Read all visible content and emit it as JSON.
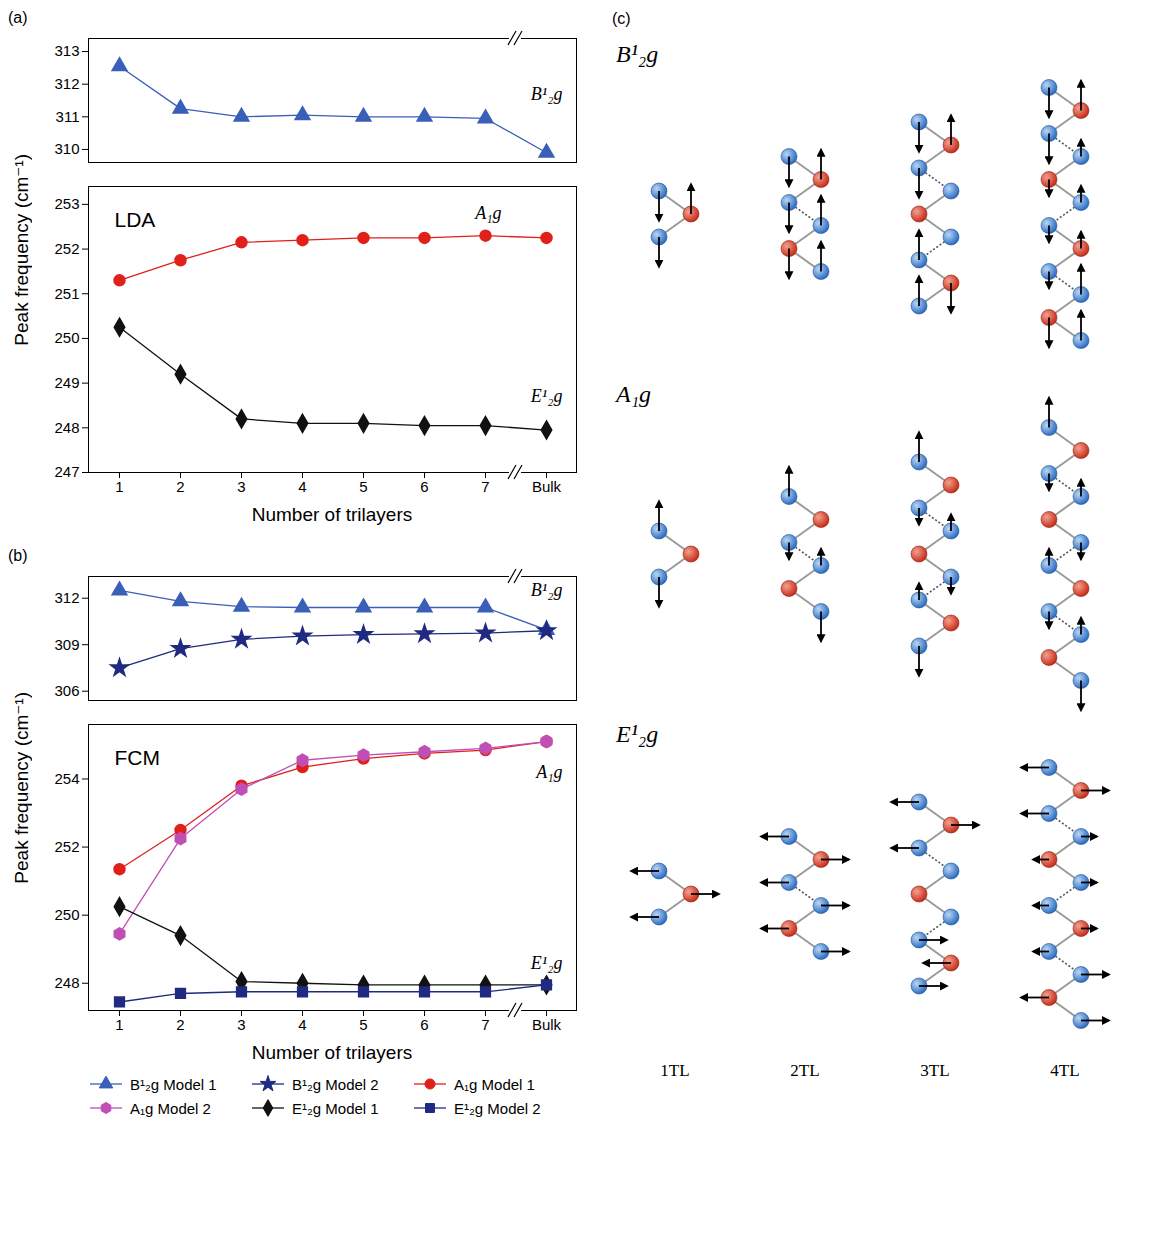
{
  "chart_data": [
    {
      "type": "line",
      "panel": "(a)",
      "title": "LDA",
      "xlabel": "Number of trilayers",
      "ylabel": "Peak frequency (cm⁻¹)",
      "categories": [
        "1",
        "2",
        "3",
        "4",
        "5",
        "6",
        "7",
        "Bulk"
      ],
      "ylim": [
        247,
        253.4
      ],
      "yticks": [
        247,
        248,
        249,
        250,
        251,
        252,
        253
      ],
      "y2lim": [
        309.6,
        313.4
      ],
      "y2ticks": [
        310,
        311,
        312,
        313
      ],
      "series": [
        {
          "color": "#3a5fb8",
          "marker": "triangle",
          "axis": "y2",
          "values": [
            312.55,
            311.25,
            311.0,
            311.05,
            311.0,
            311.0,
            310.95,
            309.9
          ]
        },
        {
          "color": "#e0201b",
          "marker": "circle",
          "values": [
            251.3,
            251.75,
            252.15,
            252.2,
            252.25,
            252.25,
            252.3,
            252.25
          ]
        },
        {
          "color": "#111111",
          "marker": "diamond",
          "values": [
            250.25,
            249.2,
            248.2,
            248.1,
            248.1,
            248.05,
            248.05,
            247.95
          ]
        }
      ],
      "annotations": [
        {
          "text": "B¹₂g",
          "x": "Bulk",
          "y": 311.7
        },
        {
          "text": "A₁g",
          "x": "7",
          "y": 252.8
        },
        {
          "text": "E¹₂g",
          "x": "Bulk",
          "y": 248.7
        }
      ]
    },
    {
      "type": "line",
      "panel": "(b)",
      "title": "FCM",
      "xlabel": "Number of trilayers",
      "ylabel": "Peak frequency (cm⁻¹)",
      "categories": [
        "1",
        "2",
        "3",
        "4",
        "5",
        "6",
        "7",
        "Bulk"
      ],
      "ylim": [
        247.2,
        255.6
      ],
      "yticks": [
        248,
        250,
        252,
        254
      ],
      "y2lim": [
        305.4,
        313.4
      ],
      "y2ticks": [
        306,
        309,
        312
      ],
      "legend": "bottom",
      "series": [
        {
          "name": "B¹₂g Model 1",
          "color": "#3a5fb8",
          "marker": "triangle",
          "axis": "y2",
          "values": [
            312.5,
            311.8,
            311.45,
            311.4,
            311.4,
            311.4,
            311.4,
            309.95
          ]
        },
        {
          "name": "B¹₂g Model 2",
          "color": "#1f2a80",
          "marker": "star",
          "axis": "y2",
          "values": [
            307.5,
            308.75,
            309.35,
            309.55,
            309.65,
            309.7,
            309.75,
            309.9
          ]
        },
        {
          "name": "A₁g Model 1",
          "color": "#e0201b",
          "marker": "circle",
          "values": [
            251.35,
            252.5,
            253.8,
            254.35,
            254.6,
            254.75,
            254.85,
            255.1
          ]
        },
        {
          "name": "A₁g Model 2",
          "color": "#c04fb5",
          "marker": "hexagon",
          "values": [
            249.45,
            252.25,
            253.7,
            254.55,
            254.7,
            254.8,
            254.9,
            255.1
          ]
        },
        {
          "name": "E¹₂g Model 1",
          "color": "#111111",
          "marker": "diamond",
          "values": [
            250.25,
            249.4,
            248.05,
            248.0,
            247.95,
            247.95,
            247.95,
            247.95
          ]
        },
        {
          "name": "E¹₂g Model 2",
          "color": "#1f2a80",
          "marker": "square",
          "values": [
            247.45,
            247.7,
            247.75,
            247.75,
            247.75,
            247.75,
            247.75,
            247.95
          ]
        }
      ],
      "annotations": [
        {
          "text": "B¹₂g",
          "x": "Bulk",
          "y": 312.5
        },
        {
          "text": "A₁g",
          "x": "Bulk",
          "y": 254.2
        },
        {
          "text": "E¹₂g",
          "x": "Bulk",
          "y": 248.6
        }
      ]
    }
  ],
  "diagram": {
    "panel": "(c)",
    "columns": [
      "1TL",
      "2TL",
      "3TL",
      "4TL"
    ],
    "rows": [
      {
        "label": "B¹₂g",
        "displacements": [
          [
            "D",
            "U",
            "D"
          ],
          [
            "D",
            "U",
            "D",
            "U",
            "D",
            "U"
          ],
          [
            "D",
            "U",
            "D",
            "",
            "",
            "",
            "U",
            "D",
            "U"
          ],
          [
            "D",
            "U",
            "D",
            "u",
            "d",
            "u",
            "d",
            "u",
            "d",
            "U",
            "D",
            "U"
          ]
        ]
      },
      {
        "label": "A₁g",
        "displacements": [
          [
            "U",
            "",
            "D"
          ],
          [
            "U",
            "",
            "d",
            "u",
            "",
            "D"
          ],
          [
            "U",
            "",
            "d",
            "u",
            "",
            "d",
            "u",
            "",
            "D"
          ],
          [
            "U",
            "",
            "d",
            "u",
            "",
            "d",
            "u",
            "",
            "d",
            "u",
            "",
            "D"
          ]
        ]
      },
      {
        "label": "E¹₂g",
        "displacements": [
          [
            "L",
            "R",
            "L"
          ],
          [
            "L",
            "R",
            "L",
            "R",
            "L",
            "R"
          ],
          [
            "L",
            "R",
            "L",
            "",
            "",
            "",
            "R",
            "L",
            "R"
          ],
          [
            "L",
            "R",
            "L",
            "r",
            "l",
            "r",
            "l",
            "r",
            "l",
            "R",
            "L",
            "R"
          ]
        ]
      }
    ]
  }
}
